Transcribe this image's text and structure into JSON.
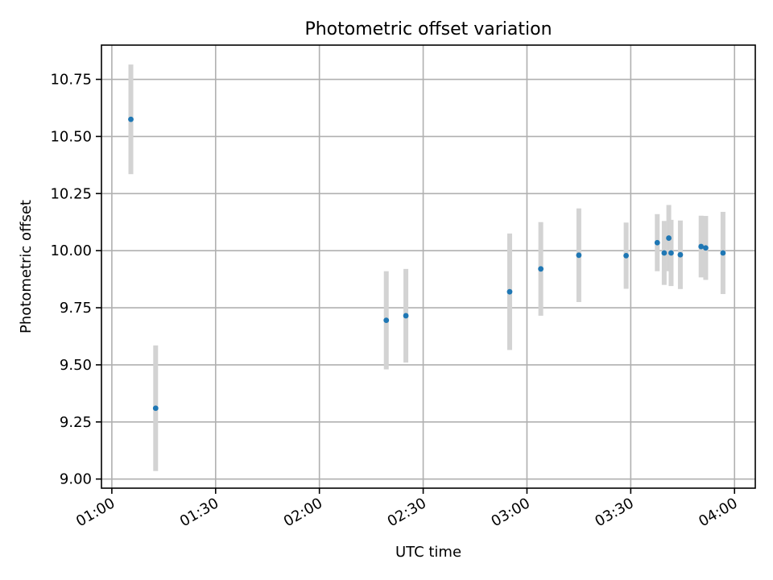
{
  "chart_data": {
    "type": "scatter",
    "title": "Photometric offset variation",
    "xlabel": "UTC time",
    "ylabel": "Photometric offset",
    "xlim": [
      "00:57",
      "04:06"
    ],
    "ylim": [
      8.96,
      10.9
    ],
    "grid": true,
    "x_ticks": [
      "01:00",
      "01:30",
      "02:00",
      "02:30",
      "03:00",
      "03:30",
      "04:00"
    ],
    "y_ticks": [
      "9.00",
      "9.25",
      "9.50",
      "9.75",
      "10.00",
      "10.25",
      "10.50",
      "10.75"
    ],
    "colors": {
      "points": "#1f77b4",
      "error_bars": "#d3d3d3",
      "grid": "#b0b0b0"
    },
    "series": [
      {
        "points": [
          {
            "x": "01:05:30",
            "y": 10.575,
            "err": 0.24
          },
          {
            "x": "01:12:40",
            "y": 9.31,
            "err": 0.275
          },
          {
            "x": "02:19:20",
            "y": 9.695,
            "err": 0.215
          },
          {
            "x": "02:25:00",
            "y": 9.715,
            "err": 0.205
          },
          {
            "x": "02:55:00",
            "y": 9.82,
            "err": 0.255
          },
          {
            "x": "03:04:00",
            "y": 9.92,
            "err": 0.205
          },
          {
            "x": "03:15:00",
            "y": 9.98,
            "err": 0.205
          },
          {
            "x": "03:28:40",
            "y": 9.978,
            "err": 0.145
          },
          {
            "x": "03:37:40",
            "y": 10.035,
            "err": 0.125
          },
          {
            "x": "03:39:40",
            "y": 9.99,
            "err": 0.14
          },
          {
            "x": "03:41:00",
            "y": 10.055,
            "err": 0.145
          },
          {
            "x": "03:41:40",
            "y": 9.99,
            "err": 0.145
          },
          {
            "x": "03:44:20",
            "y": 9.982,
            "err": 0.15
          },
          {
            "x": "03:50:20",
            "y": 10.018,
            "err": 0.135
          },
          {
            "x": "03:51:40",
            "y": 10.012,
            "err": 0.14
          },
          {
            "x": "03:56:40",
            "y": 9.99,
            "err": 0.18
          }
        ]
      }
    ]
  }
}
